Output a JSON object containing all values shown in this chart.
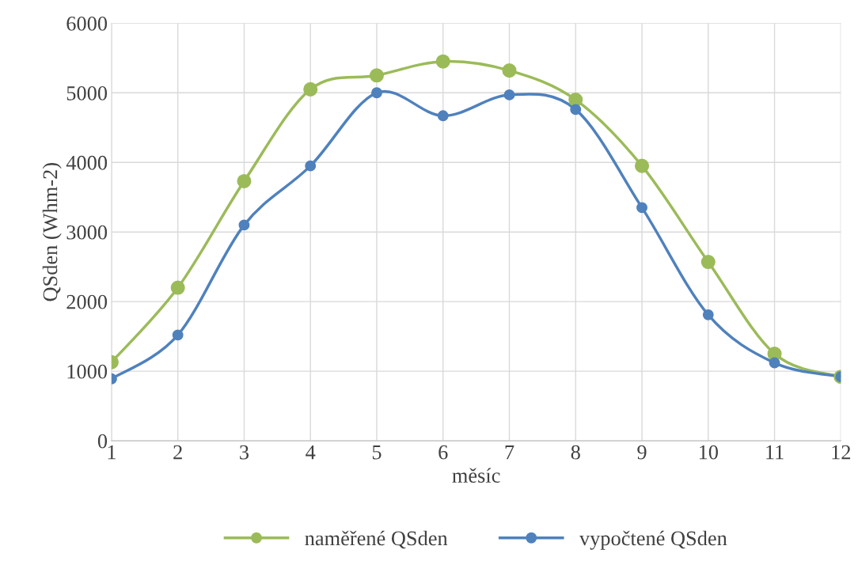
{
  "chart_data": {
    "type": "line",
    "xlabel": "měsíc",
    "ylabel": "QSden (Whm-2)",
    "x": [
      1,
      2,
      3,
      4,
      5,
      6,
      7,
      8,
      9,
      10,
      11,
      12
    ],
    "series": [
      {
        "name": "naměřené QSden",
        "color": "#9bbb59",
        "values": [
          1130,
          2200,
          3730,
          5050,
          5250,
          5450,
          5320,
          4900,
          3950,
          2570,
          1250,
          920
        ]
      },
      {
        "name": "vypočtené QSden",
        "color": "#4f81bd",
        "values": [
          890,
          1520,
          3100,
          3950,
          5000,
          4670,
          4970,
          4760,
          3350,
          1810,
          1120,
          920
        ]
      }
    ],
    "xlim": [
      1,
      12
    ],
    "xticks": [
      1,
      2,
      3,
      4,
      5,
      6,
      7,
      8,
      9,
      10,
      11,
      12
    ],
    "ylim": [
      0,
      6000
    ],
    "yticks": [
      0,
      1000,
      2000,
      3000,
      4000,
      5000,
      6000
    ],
    "grid": true,
    "legend": "bottom",
    "marker": "circle",
    "line_style": "solid"
  }
}
